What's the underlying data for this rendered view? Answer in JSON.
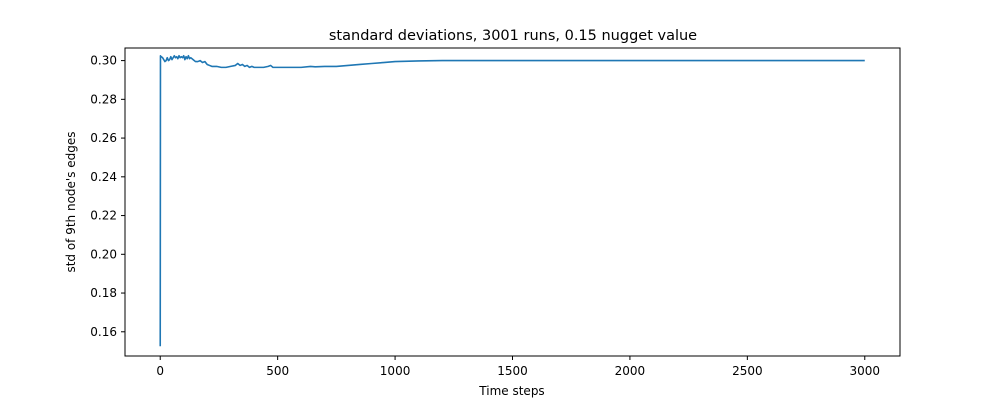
{
  "chart_data": {
    "type": "line",
    "title": "standard deviations, 3001 runs, 0.15 nugget value",
    "xlabel": "Time steps",
    "ylabel": "std of 9th node's edges",
    "xlim": [
      -150,
      3150
    ],
    "ylim": [
      0.1475,
      0.3065
    ],
    "xticks": [
      0,
      500,
      1000,
      1500,
      2000,
      2500,
      3000
    ],
    "xtick_labels": [
      "0",
      "500",
      "1000",
      "1500",
      "2000",
      "2500",
      "3000"
    ],
    "yticks": [
      0.16,
      0.18,
      0.2,
      0.22,
      0.24,
      0.26,
      0.28,
      0.3
    ],
    "ytick_labels": [
      "0.16",
      "0.18",
      "0.20",
      "0.22",
      "0.24",
      "0.26",
      "0.28",
      "0.30"
    ],
    "grid": false,
    "legend": "none",
    "series": [
      {
        "color": "#1f77b4",
        "x": [
          0,
          1,
          2,
          5,
          10,
          15,
          20,
          25,
          30,
          35,
          40,
          45,
          50,
          55,
          60,
          65,
          70,
          75,
          80,
          85,
          90,
          95,
          100,
          105,
          110,
          115,
          120,
          125,
          130,
          140,
          150,
          160,
          170,
          180,
          190,
          200,
          210,
          220,
          240,
          260,
          280,
          300,
          320,
          330,
          340,
          350,
          360,
          370,
          380,
          390,
          400,
          420,
          440,
          460,
          470,
          480,
          490,
          500,
          550,
          600,
          640,
          660,
          700,
          750,
          800,
          850,
          900,
          950,
          1000,
          1100,
          1200,
          1500,
          2000,
          2500,
          3000
        ],
        "y": [
          0.1525,
          0.3025,
          0.302,
          0.302,
          0.3015,
          0.3005,
          0.2995,
          0.3,
          0.3015,
          0.3,
          0.3005,
          0.302,
          0.3005,
          0.3015,
          0.3025,
          0.3015,
          0.302,
          0.301,
          0.3025,
          0.3015,
          0.302,
          0.3015,
          0.3025,
          0.3005,
          0.302,
          0.301,
          0.3025,
          0.301,
          0.3015,
          0.3005,
          0.2995,
          0.2995,
          0.3,
          0.299,
          0.2995,
          0.298,
          0.2975,
          0.297,
          0.297,
          0.2965,
          0.2965,
          0.297,
          0.2975,
          0.2985,
          0.2975,
          0.298,
          0.297,
          0.2975,
          0.2965,
          0.297,
          0.2965,
          0.2965,
          0.2965,
          0.297,
          0.2975,
          0.2965,
          0.2965,
          0.2965,
          0.2965,
          0.2965,
          0.297,
          0.2968,
          0.297,
          0.297,
          0.2975,
          0.298,
          0.2985,
          0.299,
          0.2995,
          0.2998,
          0.3,
          0.3,
          0.3,
          0.3,
          0.3
        ]
      }
    ]
  }
}
